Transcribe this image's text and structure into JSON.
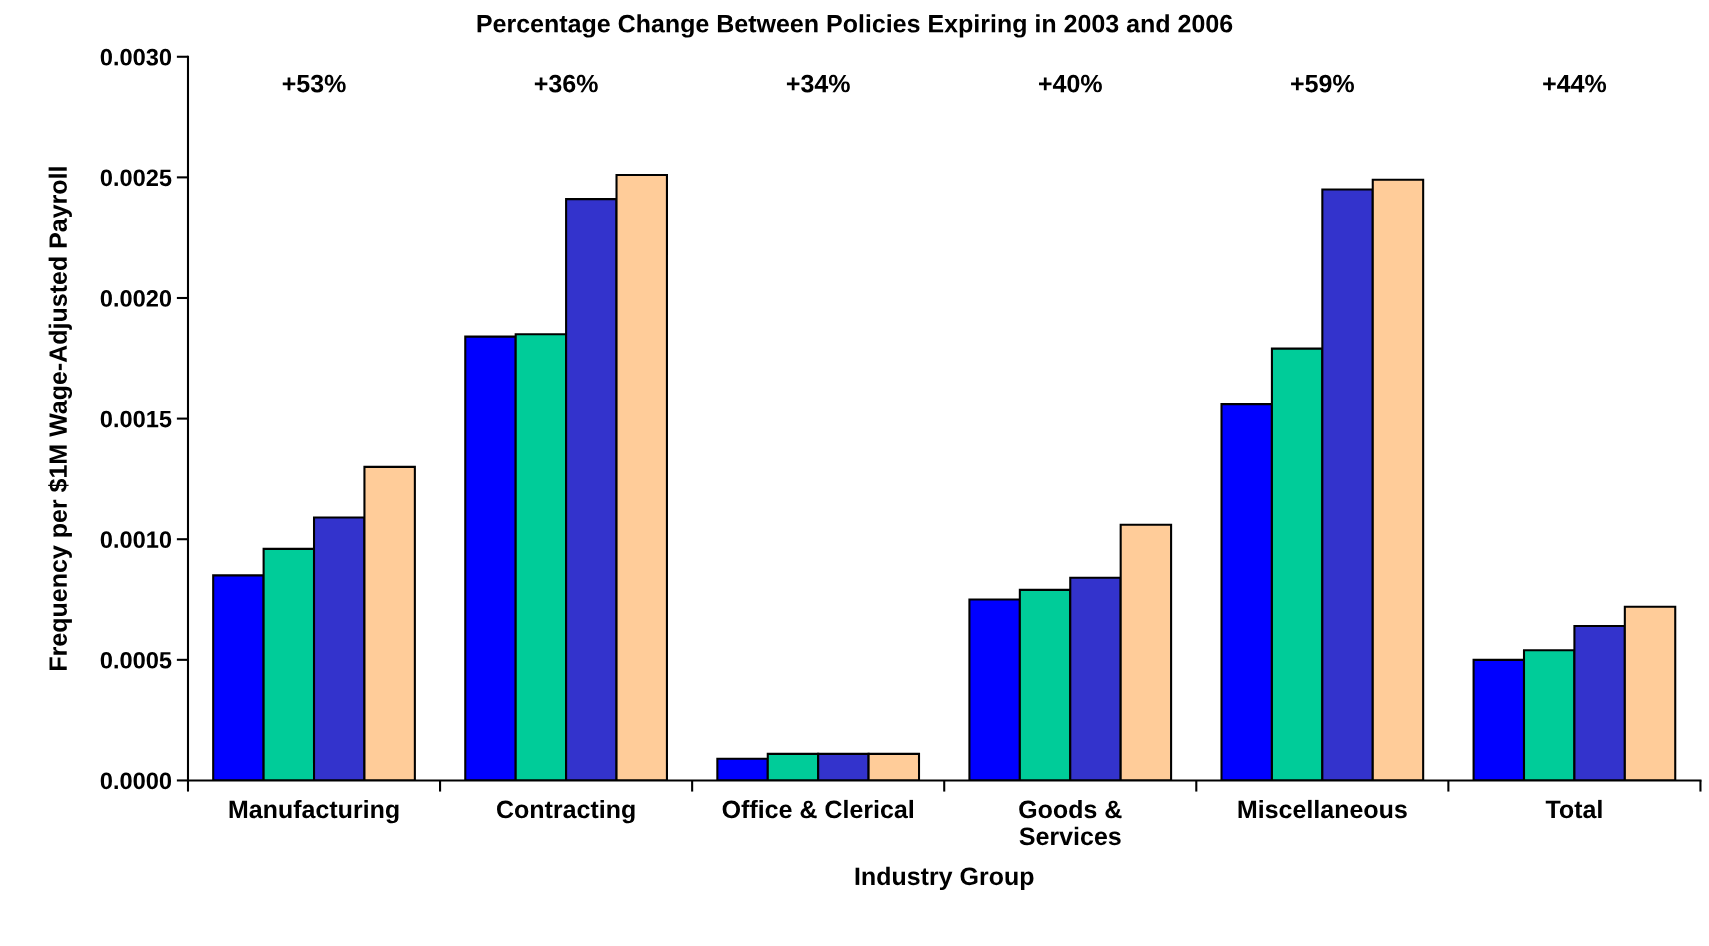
{
  "chart_data": {
    "type": "bar",
    "title": "Percentage Change Between Policies Expiring in 2003 and 2006",
    "xlabel": "Industry Group",
    "ylabel": "Frequency per $1M Wage-Adjusted Payroll",
    "categories": [
      "Manufacturing",
      "Contracting",
      "Office & Clerical",
      "Goods &\nServices",
      "Miscellaneous",
      "Total"
    ],
    "series": [
      {
        "color": "#0000ff",
        "values": [
          0.00085,
          0.00184,
          9e-05,
          0.00075,
          0.00156,
          0.0005
        ]
      },
      {
        "color": "#00cc99",
        "values": [
          0.00096,
          0.00185,
          0.00011,
          0.00079,
          0.00179,
          0.00054
        ]
      },
      {
        "color": "#3333cc",
        "values": [
          0.00109,
          0.00241,
          0.00011,
          0.00084,
          0.00245,
          0.00064
        ]
      },
      {
        "color": "#ffcc99",
        "values": [
          0.0013,
          0.00251,
          0.00011,
          0.00106,
          0.00249,
          0.00072
        ]
      }
    ],
    "annotations": [
      "+53%",
      "+36%",
      "+34%",
      "+40%",
      "+59%",
      "+44%"
    ],
    "ylim": [
      0,
      0.003
    ],
    "yticks": [
      {
        "value": 0,
        "label": "0.0000"
      },
      {
        "value": 0.0005,
        "label": "0.0005"
      },
      {
        "value": 0.001,
        "label": "0.0010"
      },
      {
        "value": 0.0015,
        "label": "0.0015"
      },
      {
        "value": 0.002,
        "label": "0.0020"
      },
      {
        "value": 0.0025,
        "label": "0.0025"
      },
      {
        "value": 0.003,
        "label": "0.0030"
      }
    ],
    "grid": false,
    "legend": false
  }
}
